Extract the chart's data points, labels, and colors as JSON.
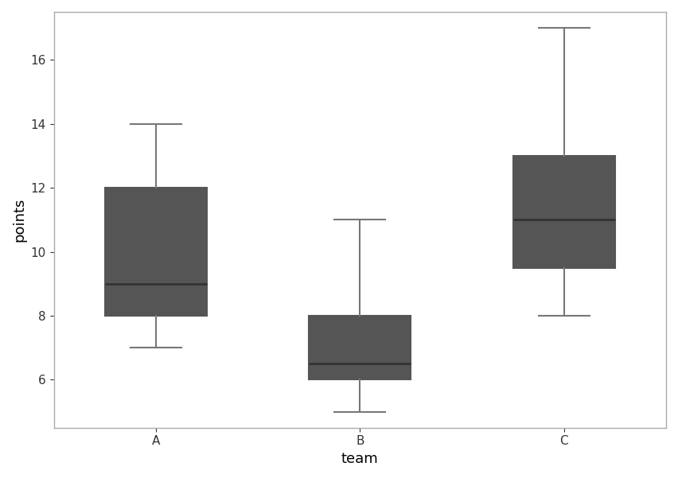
{
  "teams": [
    "A",
    "B",
    "C"
  ],
  "box_data": {
    "A": {
      "whislo": 7,
      "q1": 8,
      "med": 9,
      "q3": 12,
      "whishi": 14
    },
    "B": {
      "whislo": 5,
      "q1": 6,
      "med": 6.5,
      "q3": 8,
      "whishi": 11
    },
    "C": {
      "whislo": 8,
      "q1": 9.5,
      "med": 11,
      "q3": 13,
      "whishi": 17
    }
  },
  "colors": [
    "#4472c4",
    "#d4782a",
    "#3a8c3a"
  ],
  "box_edge_color": "#555555",
  "whisker_color": "#777777",
  "median_color": "#333333",
  "xlabel": "team",
  "ylabel": "points",
  "background_color": "#ffffff",
  "ylim": [
    4.5,
    17.5
  ],
  "yticks": [
    6,
    8,
    10,
    12,
    14,
    16
  ],
  "figsize": [
    8.52,
    6.01
  ],
  "dpi": 100
}
